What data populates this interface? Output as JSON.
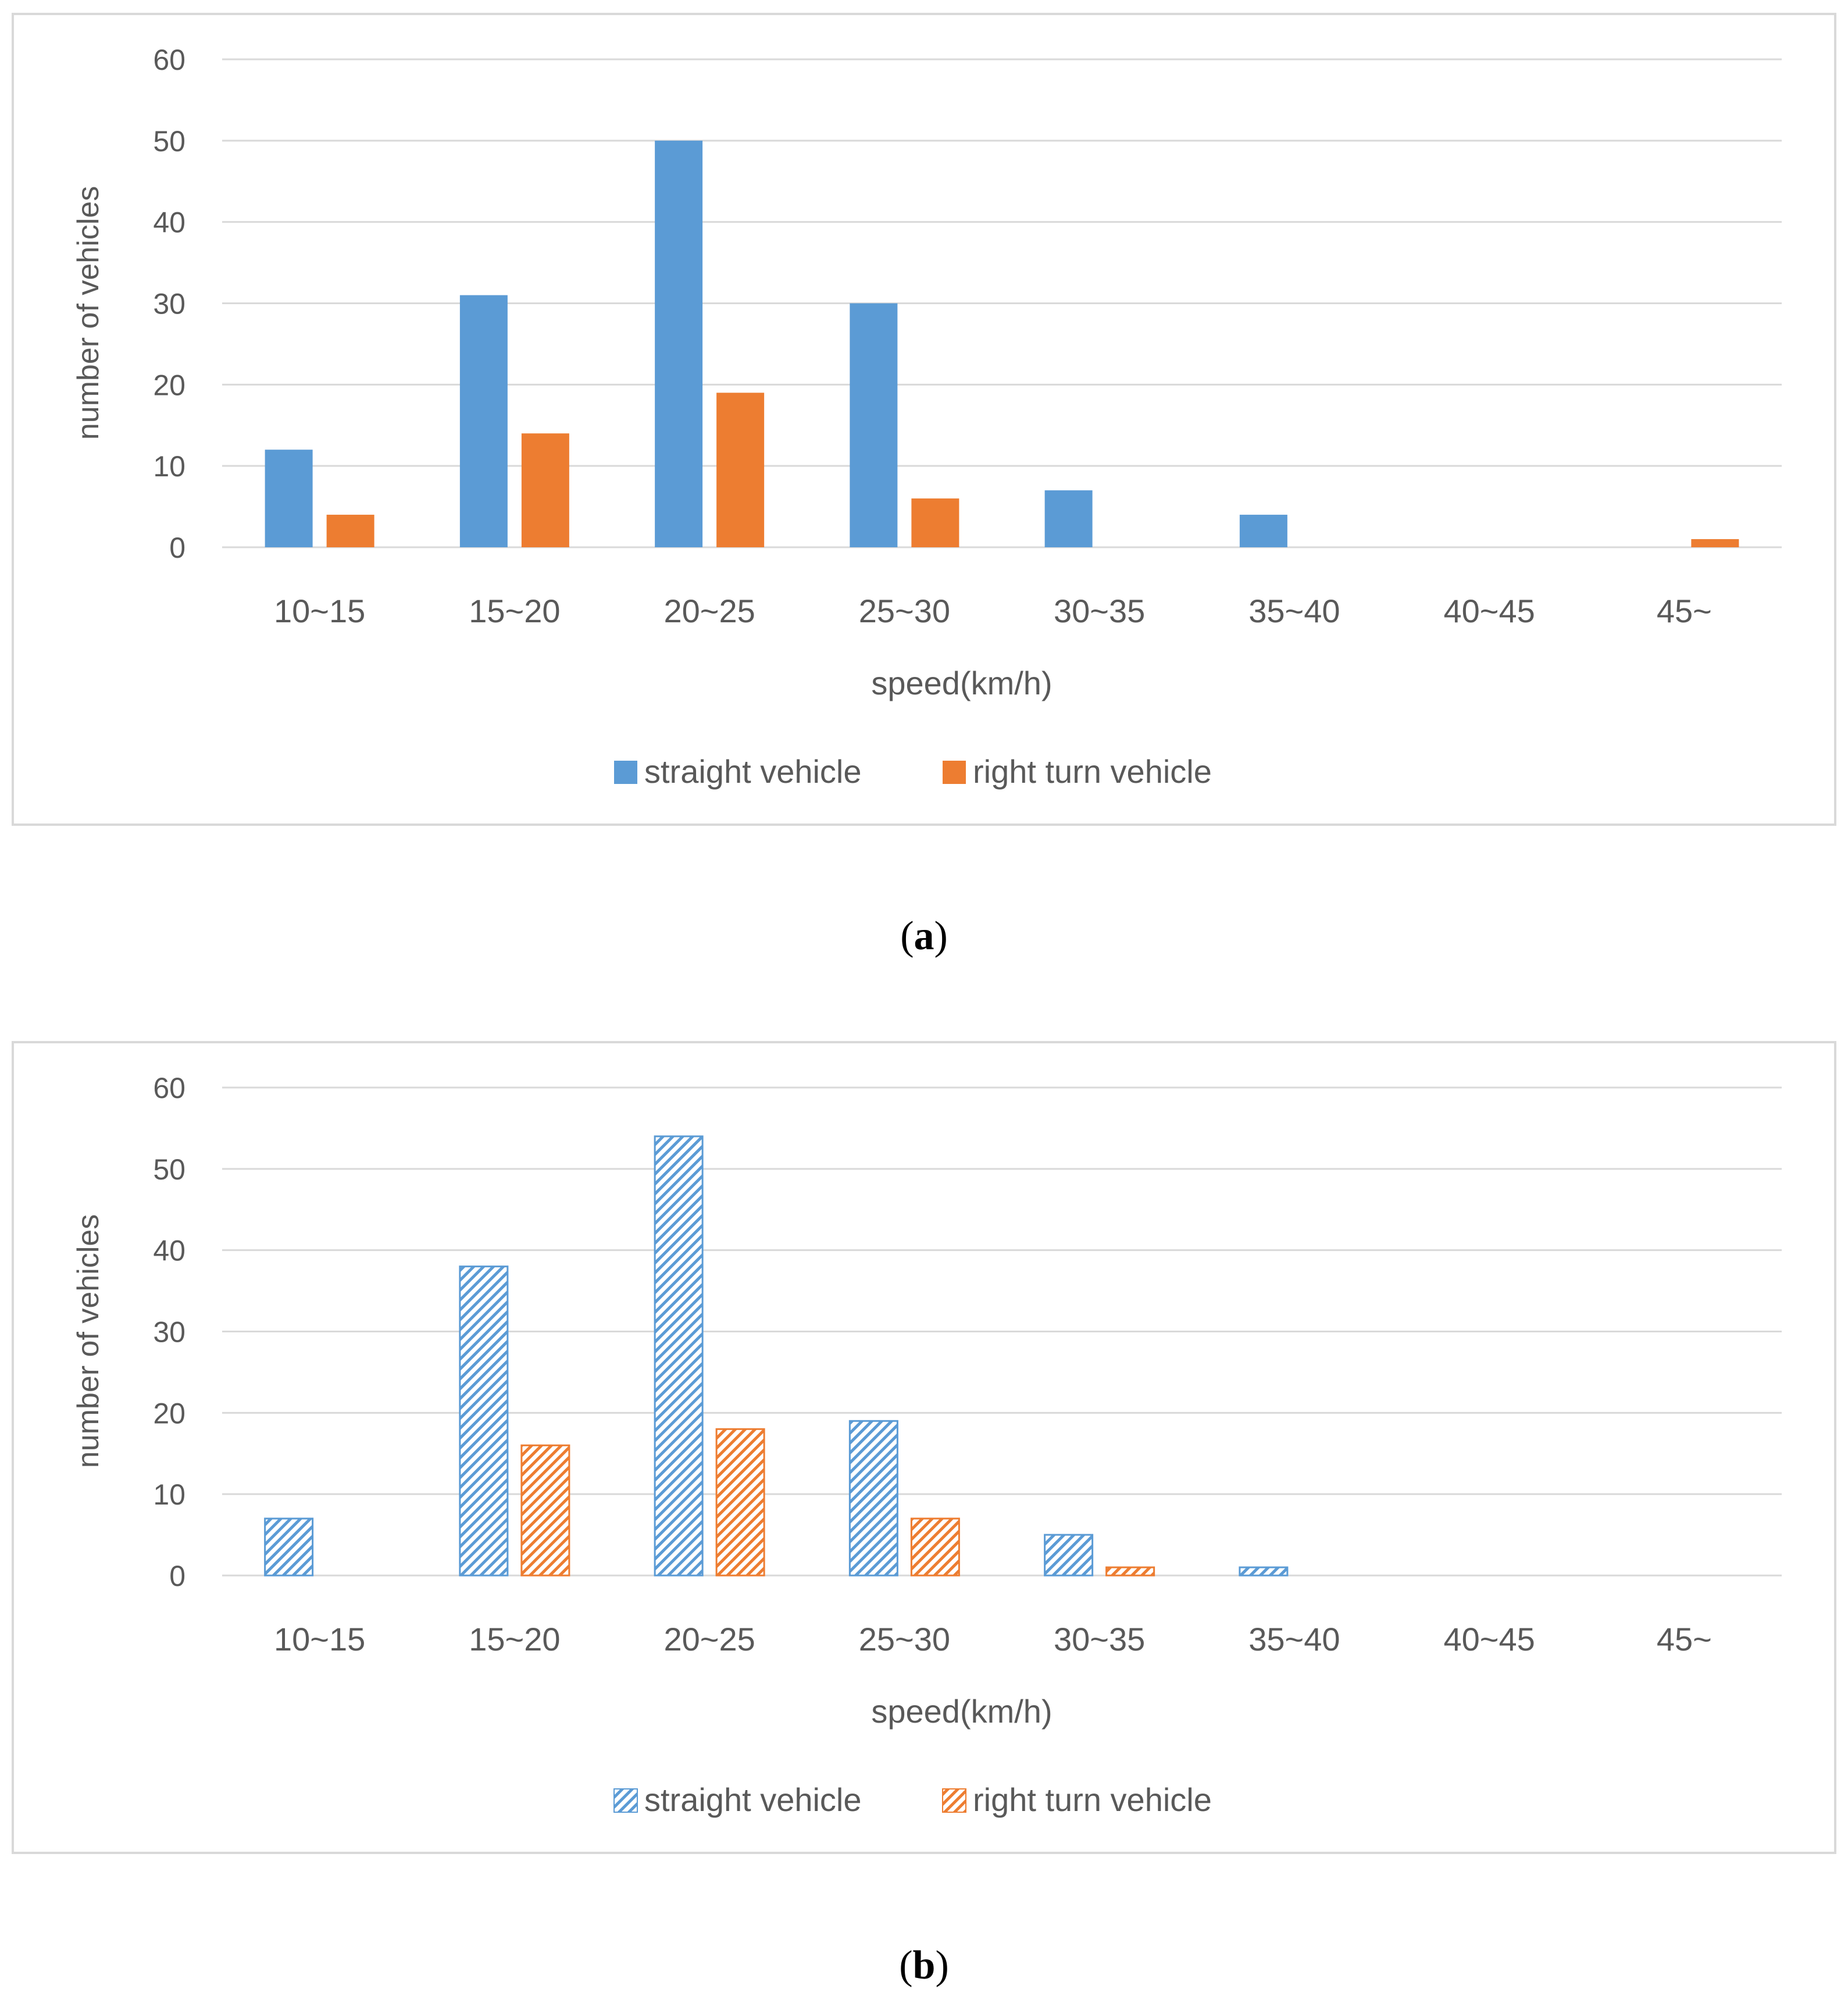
{
  "chart_data": [
    {
      "type": "bar",
      "panel": "a",
      "categories": [
        "10~15",
        "15~20",
        "20~25",
        "25~30",
        "30~35",
        "35~40",
        "40~45",
        "45~"
      ],
      "series": [
        {
          "name": "straight vehicle",
          "values": [
            12,
            31,
            50,
            30,
            7,
            4,
            0,
            0
          ],
          "color": "#5b9bd5",
          "fill": "solid"
        },
        {
          "name": "right turn vehicle",
          "values": [
            4,
            14,
            19,
            6,
            0,
            0,
            0,
            1
          ],
          "color": "#ed7d31",
          "fill": "solid"
        }
      ],
      "xlabel": "speed(km/h)",
      "ylabel": "number of vehicles",
      "ylim": [
        0,
        60
      ],
      "yticks": [
        0,
        10,
        20,
        30,
        40,
        50,
        60
      ],
      "grid": true,
      "legend": "bottom-center"
    },
    {
      "type": "bar",
      "panel": "b",
      "categories": [
        "10~15",
        "15~20",
        "20~25",
        "25~30",
        "30~35",
        "35~40",
        "40~45",
        "45~"
      ],
      "series": [
        {
          "name": "straight vehicle",
          "values": [
            7,
            38,
            54,
            19,
            5,
            1,
            0,
            0
          ],
          "color": "#5b9bd5",
          "fill": "hatched"
        },
        {
          "name": "right turn vehicle",
          "values": [
            0,
            16,
            18,
            7,
            1,
            0,
            0,
            0
          ],
          "color": "#ed7d31",
          "fill": "hatched"
        }
      ],
      "xlabel": "speed(km/h)",
      "ylabel": "number of vehicles",
      "ylim": [
        0,
        60
      ],
      "yticks": [
        0,
        10,
        20,
        30,
        40,
        50,
        60
      ],
      "grid": true,
      "legend": "bottom-center"
    }
  ],
  "captions": {
    "a_open": "(",
    "a_label": "a",
    "a_close": ")",
    "b_open": "(",
    "b_label": "b",
    "b_close": ")"
  }
}
